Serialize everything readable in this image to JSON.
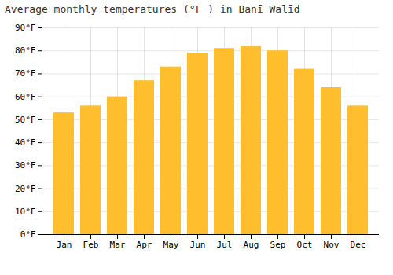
{
  "chart_data": {
    "type": "bar",
    "title": "Average monthly temperatures (°F ) in Banī Walīd",
    "categories": [
      "Jan",
      "Feb",
      "Mar",
      "Apr",
      "May",
      "Jun",
      "Jul",
      "Aug",
      "Sep",
      "Oct",
      "Nov",
      "Dec"
    ],
    "values": [
      53,
      56,
      60,
      67,
      73,
      79,
      81,
      82,
      80,
      72,
      64,
      56
    ],
    "color": "#FFBE2D",
    "ylim": [
      0,
      90
    ],
    "yticks": [
      {
        "value": 0,
        "label": "0°F"
      },
      {
        "value": 10,
        "label": "10°F"
      },
      {
        "value": 20,
        "label": "20°F"
      },
      {
        "value": 30,
        "label": "30°F"
      },
      {
        "value": 40,
        "label": "40°F"
      },
      {
        "value": 50,
        "label": "50°F"
      },
      {
        "value": 60,
        "label": "60°F"
      },
      {
        "value": 70,
        "label": "70°F"
      },
      {
        "value": 80,
        "label": "80°F"
      },
      {
        "value": 90,
        "label": "90°F"
      }
    ],
    "grid": true
  }
}
